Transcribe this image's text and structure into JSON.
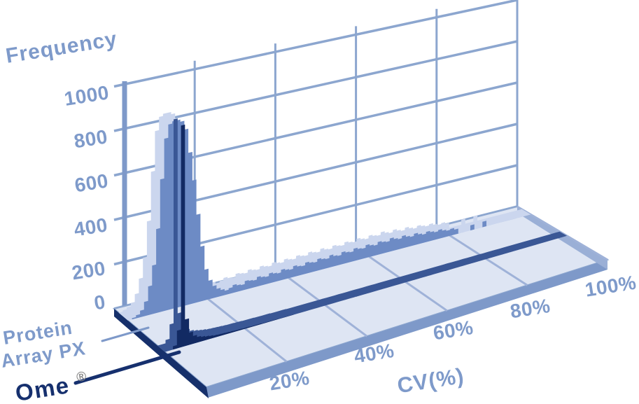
{
  "labels": {
    "frequency": "Frequency",
    "cv": "CV(%)",
    "protein_line1": "Protein",
    "protein_line2": "Array PX",
    "ome": "Ome",
    "registered": "®"
  },
  "colors": {
    "label_blue": "#7E9ACA",
    "grid_blue": "#8CA6CF",
    "axis_blue": "#7E99C9",
    "hist_front_blue": "#6D8BC5",
    "hist_top_lavender": "#CBD6EE",
    "hist_dark_navy": "#122A63",
    "dark_top_navy": "#3A5795",
    "floor_top": "#DEE5F3",
    "floor_front": "#7E99C9",
    "floor_left": "#16306B",
    "floor_right": "#9AAFD6",
    "depth_line": "#9FB2D8",
    "leader_light": "#7E99C9",
    "leader_dark": "#16306E",
    "registered_gray": "#8B8B8B"
  },
  "chart_data": {
    "type": "bar",
    "subtype": "3d-perspective-histogram",
    "title": "",
    "xlabel": "CV(%)",
    "ylabel": "Frequency",
    "xlim": [
      0,
      100
    ],
    "ylim": [
      0,
      1000
    ],
    "grid": true,
    "bin_width_percent": 1,
    "x_tick_values": [
      20,
      40,
      60,
      80,
      100
    ],
    "x_tick_labels": [
      "20%",
      "40%",
      "60%",
      "80%",
      "100%"
    ],
    "y_tick_values": [
      0,
      200,
      400,
      600,
      800,
      1000
    ],
    "y_tick_labels": [
      "0",
      "200",
      "400",
      "600",
      "800",
      "1000"
    ],
    "series": [
      {
        "name": "Protein Array PX",
        "row": "back",
        "color": "#6D8BC5",
        "top_color": "#CBD6EE",
        "values": [
          0,
          6,
          14,
          30,
          65,
          130,
          220,
          380,
          600,
          780,
          840,
          850,
          850,
          840,
          800,
          690,
          560,
          400,
          250,
          140,
          85,
          55,
          38,
          28,
          20,
          26,
          36,
          30,
          26,
          40,
          36,
          32,
          44,
          38,
          34,
          46,
          40,
          36,
          48,
          42,
          38,
          50,
          44,
          40,
          52,
          46,
          42,
          54,
          48,
          44,
          56,
          48,
          44,
          56,
          50,
          46,
          58,
          52,
          48,
          60,
          53,
          48,
          60,
          54,
          50,
          62,
          54,
          48,
          58,
          50,
          44,
          54,
          46,
          40,
          48,
          42,
          36,
          42,
          34,
          28,
          32,
          24,
          0,
          0,
          0,
          24,
          0,
          0,
          26,
          0,
          0,
          0,
          0,
          0,
          0,
          0,
          0,
          0,
          0,
          0
        ]
      },
      {
        "name": "Ome®",
        "row": "front",
        "color": "#122A63",
        "top_color": "#3A5795",
        "values": [
          0,
          0,
          15,
          80,
          1000,
          120,
          55,
          35,
          25,
          20,
          16,
          13,
          10,
          9,
          8,
          7,
          6,
          5,
          5,
          4,
          4,
          3,
          3,
          3,
          2,
          2,
          2,
          2,
          1,
          1,
          1,
          1,
          0,
          0,
          0,
          0,
          0,
          0,
          0,
          0,
          0,
          0,
          0,
          0,
          0,
          0,
          0,
          0,
          0,
          0,
          0,
          0,
          0,
          0,
          0,
          0,
          0,
          0,
          0,
          0,
          0,
          0,
          0,
          0,
          0,
          0,
          0,
          0,
          0,
          0,
          0,
          0,
          0,
          0,
          0,
          0,
          0,
          0,
          0,
          0,
          0,
          0,
          0,
          0,
          0,
          0,
          0,
          0,
          0,
          0,
          0,
          0,
          0,
          0,
          0,
          0,
          0,
          0,
          0,
          0
        ]
      }
    ],
    "annotations": [
      {
        "text": "Protein Array PX",
        "points_to": "back light-blue histogram"
      },
      {
        "text": "Ome®",
        "points_to": "front dark-navy histogram"
      }
    ],
    "legend_position": "bottom-left"
  }
}
